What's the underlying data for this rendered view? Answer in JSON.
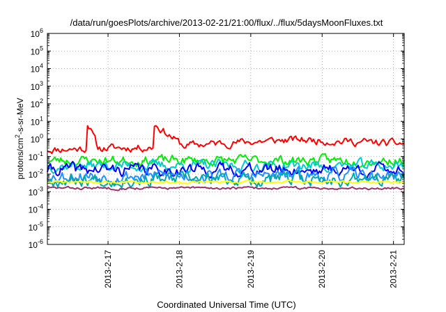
{
  "chart_data": {
    "type": "line",
    "title": "/data/run/goesPlots/archive/2013-02-21/21:00/flux/../flux/5daysMoonFluxes.txt",
    "xlabel": "Coordinated Universal Time (UTC)",
    "ylabel": {
      "pre": "protons/cm",
      "sup": "2",
      "post": "-s-sr-MeV"
    },
    "yscale": "log",
    "ylim_exponent": [
      -6,
      6
    ],
    "y_ticks": [
      {
        "base": "10",
        "exp": "-6"
      },
      {
        "base": "10",
        "exp": "-5"
      },
      {
        "base": "10",
        "exp": "-4"
      },
      {
        "base": "10",
        "exp": "-3"
      },
      {
        "base": "10",
        "exp": "-2"
      },
      {
        "base": "10",
        "exp": "-1"
      },
      {
        "base": "10",
        "exp": "0"
      },
      {
        "base": "10",
        "exp": "1"
      },
      {
        "base": "10",
        "exp": "2"
      },
      {
        "base": "10",
        "exp": "3"
      },
      {
        "base": "10",
        "exp": "4"
      },
      {
        "base": "10",
        "exp": "5"
      },
      {
        "base": "10",
        "exp": "6"
      }
    ],
    "xlim_days": [
      0,
      5
    ],
    "x_ticks": [
      {
        "label": "2013-2-17",
        "day": 1
      },
      {
        "label": "2013-2-18",
        "day": 2
      },
      {
        "label": "2013-2-19",
        "day": 3
      },
      {
        "label": "2013-2-20",
        "day": 4
      },
      {
        "label": "2013-2-21",
        "day": 5
      }
    ],
    "grid": true,
    "series": [
      {
        "color": "#ff0000",
        "base": 0.3,
        "noise": 0.35,
        "seed": 11,
        "features": [
          [
            0.55,
            0.7,
            12
          ],
          [
            1.48,
            1.95,
            8
          ]
        ],
        "trend": [
          [
            0,
            0.25
          ],
          [
            1.7,
            0.35
          ],
          [
            3.55,
            0.9
          ],
          [
            4.8,
            0.55
          ]
        ]
      },
      {
        "color": "#00ee00",
        "base": 0.06,
        "noise": 0.45,
        "seed": 23,
        "features": [],
        "trend": []
      },
      {
        "color": "#00cccc",
        "base": 0.03,
        "noise": 0.5,
        "seed": 37,
        "features": [],
        "trend": []
      },
      {
        "color": "#0000ff",
        "base": 0.018,
        "noise": 0.55,
        "seed": 41,
        "features": [],
        "trend": []
      },
      {
        "color": "#1e90ff",
        "base": 0.008,
        "noise": 0.6,
        "seed": 53,
        "features": [],
        "trend": []
      },
      {
        "color": "#00aaaa",
        "base": 0.005,
        "noise": 0.6,
        "seed": 67,
        "features": [],
        "trend": []
      },
      {
        "color": "#ffff00",
        "base": 0.0035,
        "noise": 0.12,
        "seed": 71,
        "features": [],
        "trend": []
      },
      {
        "color": "#993366",
        "base": 0.0016,
        "noise": 0.12,
        "seed": 83,
        "features": [],
        "trend": []
      }
    ]
  }
}
